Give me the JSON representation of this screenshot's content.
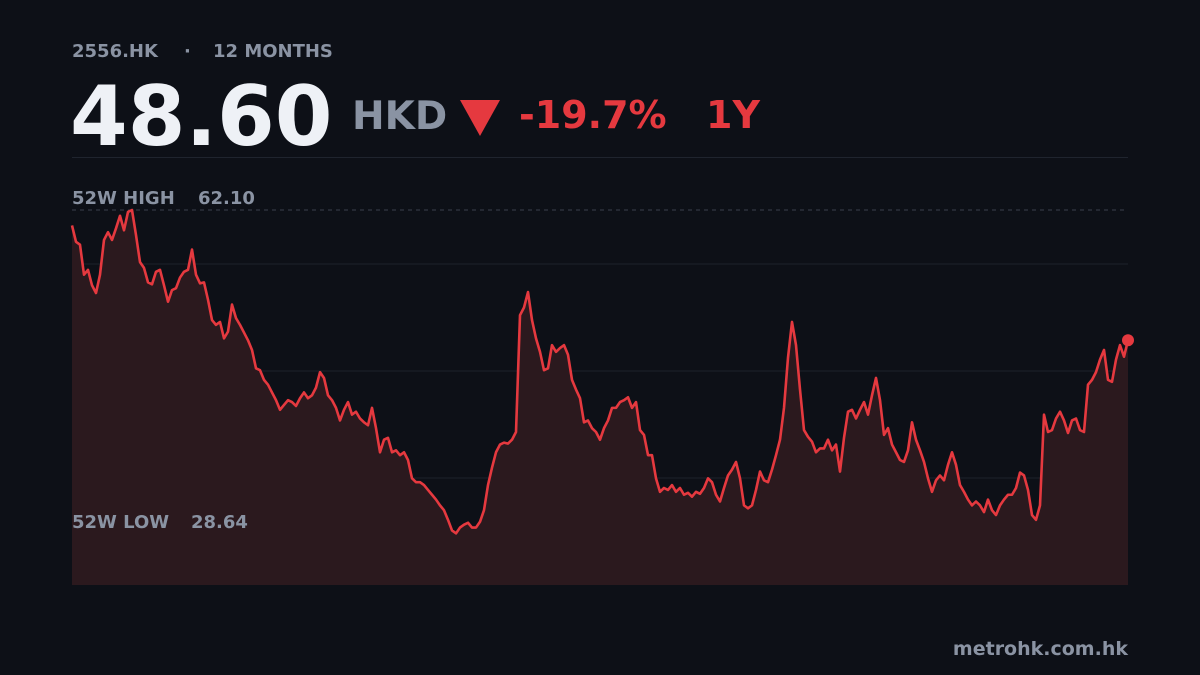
{
  "header": {
    "ticker": "2556.HK",
    "separator": "·",
    "period": "12 MONTHS",
    "price": {
      "value": 48.6,
      "label": "48.60"
    },
    "currency": "HKD",
    "change": {
      "value": -19.7,
      "label": "-19.7%"
    },
    "change_period": "1Y"
  },
  "chart_data": {
    "type": "line",
    "series": [
      {
        "color": "#e5393f",
        "values": [
          60.5,
          58.8,
          58.5,
          55.4,
          55.9,
          54.3,
          53.5,
          55.4,
          59.0,
          59.8,
          59.0,
          60.2,
          61.5,
          60.0,
          61.9,
          62.1,
          59.5,
          56.7,
          56.1,
          54.6,
          54.4,
          55.7,
          55.9,
          54.3,
          52.6,
          53.8,
          54.0,
          55.1,
          55.7,
          55.9,
          58.0,
          55.4,
          54.5,
          54.6,
          52.8,
          50.7,
          50.2,
          50.5,
          48.8,
          49.5,
          52.3,
          50.9,
          50.2,
          49.4,
          48.6,
          47.6,
          45.7,
          45.5,
          44.5,
          44.0,
          43.2,
          42.4,
          41.4,
          41.9,
          42.4,
          42.2,
          41.8,
          42.6,
          43.2,
          42.6,
          42.9,
          43.7,
          45.3,
          44.7,
          42.9,
          42.4,
          41.6,
          40.3,
          41.4,
          42.2,
          40.9,
          41.2,
          40.5,
          40.1,
          39.8,
          41.6,
          39.5,
          37.0,
          38.3,
          38.5,
          37.0,
          37.2,
          36.7,
          37.0,
          36.2,
          34.3,
          33.9,
          33.9,
          33.6,
          33.1,
          32.6,
          32.1,
          31.5,
          31.0,
          30.0,
          28.9,
          28.6,
          29.2,
          29.5,
          29.7,
          29.2,
          29.2,
          29.8,
          31.0,
          33.6,
          35.4,
          37.0,
          37.8,
          38.0,
          37.9,
          38.3,
          39.1,
          51.2,
          52.0,
          53.6,
          50.7,
          48.8,
          47.4,
          45.5,
          45.7,
          48.1,
          47.4,
          47.8,
          48.1,
          47.1,
          44.5,
          43.5,
          42.6,
          40.1,
          40.3,
          39.5,
          39.1,
          38.3,
          39.5,
          40.3,
          41.6,
          41.6,
          42.2,
          42.4,
          42.7,
          41.6,
          42.2,
          39.3,
          38.8,
          36.7,
          36.7,
          34.3,
          32.9,
          33.3,
          33.1,
          33.6,
          32.9,
          33.3,
          32.6,
          32.8,
          32.4,
          32.9,
          32.7,
          33.3,
          34.3,
          33.9,
          32.6,
          31.9,
          33.3,
          34.6,
          35.2,
          36.0,
          34.3,
          31.5,
          31.2,
          31.5,
          33.1,
          35.0,
          34.1,
          33.9,
          35.2,
          36.7,
          38.3,
          41.6,
          46.8,
          50.5,
          48.1,
          43.5,
          39.3,
          38.6,
          38.1,
          37.0,
          37.4,
          37.4,
          38.3,
          37.2,
          37.8,
          35.0,
          38.5,
          41.2,
          41.4,
          40.5,
          41.4,
          42.2,
          40.9,
          42.9,
          44.7,
          42.4,
          38.8,
          39.5,
          37.8,
          37.0,
          36.2,
          36.0,
          37.2,
          40.1,
          38.3,
          37.2,
          36.0,
          34.3,
          32.9,
          34.1,
          34.6,
          34.1,
          35.7,
          37.0,
          35.7,
          33.6,
          32.9,
          32.1,
          31.5,
          31.9,
          31.5,
          30.8,
          32.1,
          31.0,
          30.5,
          31.5,
          32.1,
          32.6,
          32.6,
          33.3,
          34.9,
          34.6,
          33.1,
          30.5,
          30.0,
          31.5,
          40.9,
          39.1,
          39.3,
          40.5,
          41.2,
          40.3,
          39.0,
          40.3,
          40.5,
          39.3,
          39.1,
          44.0,
          44.5,
          45.3,
          46.6,
          47.6,
          44.5,
          44.3,
          46.6,
          48.1,
          46.9,
          48.6
        ]
      }
    ],
    "area_color": "#2b191e",
    "ylim": [
      23.25,
      67.59
    ],
    "high": {
      "name": "52W HIGH",
      "value": 62.1,
      "label": "62.10"
    },
    "low": {
      "name": "52W LOW",
      "value": 28.64,
      "label": "28.64"
    }
  },
  "footer": "metrohk.com.hk"
}
